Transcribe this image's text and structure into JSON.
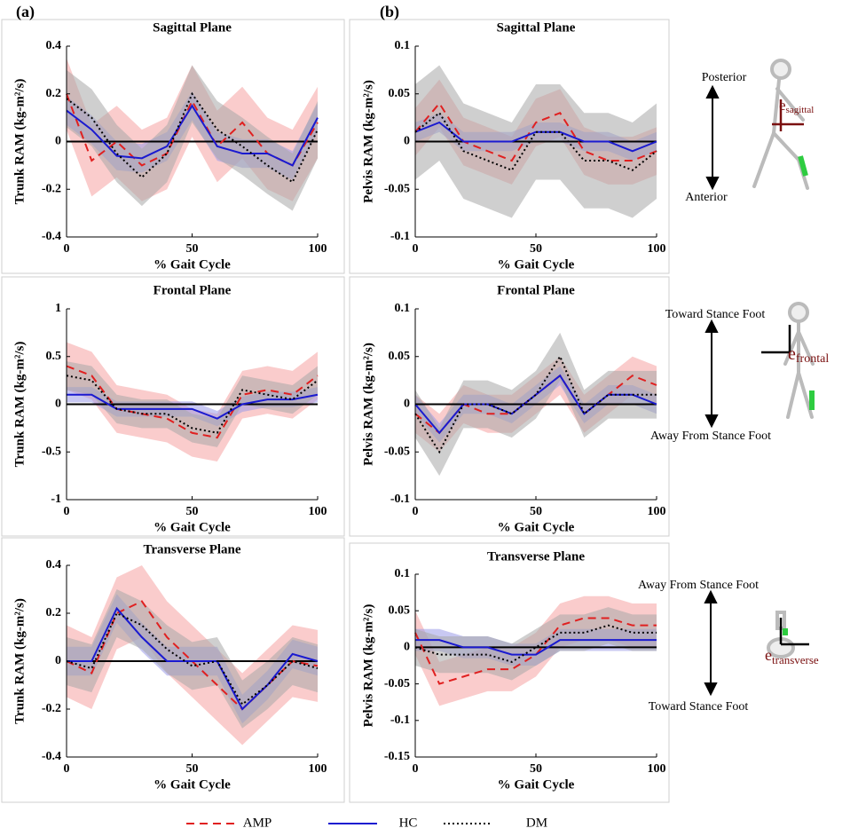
{
  "panel_labels": [
    "(a)",
    "(b)"
  ],
  "annotations": [
    {
      "top": "Posterior",
      "bottom": "Anterior",
      "vector": "e",
      "subscript": "sagittal"
    },
    {
      "top": "Toward Stance Foot",
      "bottom": "Away From Stance Foot",
      "vector": "e",
      "subscript": "frontal"
    },
    {
      "top": "Away From Stance Foot",
      "bottom": "Toward Stance Foot",
      "vector": "e",
      "subscript": "transverse"
    }
  ],
  "chart_data": [
    {
      "type": "line",
      "title": "Sagittal Plane",
      "xlabel": "% Gait Cycle",
      "ylabel": "Trunk RAM (kg-m²/s)",
      "x": [
        0,
        10,
        20,
        30,
        40,
        50,
        60,
        70,
        80,
        90,
        100
      ],
      "xlim": [
        0,
        100
      ],
      "xticks": [
        0,
        50,
        100
      ],
      "ylim": [
        -0.4,
        0.4
      ],
      "yticks": [
        -0.4,
        -0.2,
        0,
        0.2,
        0.4
      ],
      "zero_line": true,
      "series": [
        {
          "name": "AMP",
          "color": "#e02020",
          "band_color": "#f5a3a3",
          "linestyle": "dashed",
          "values": [
            0.2,
            -0.08,
            0,
            -0.1,
            -0.05,
            0.17,
            -0.02,
            0.08,
            -0.05,
            -0.1,
            0.08
          ],
          "lower": [
            0.05,
            -0.23,
            -0.15,
            -0.25,
            -0.2,
            0.02,
            -0.17,
            -0.07,
            -0.2,
            -0.25,
            -0.07
          ],
          "upper": [
            0.35,
            0.07,
            0.15,
            0.05,
            0.1,
            0.32,
            0.13,
            0.23,
            0.1,
            0.05,
            0.23
          ]
        },
        {
          "name": "HC",
          "color": "#1a1ad0",
          "band_color": "#9a9ae8",
          "linestyle": "solid",
          "values": [
            0.13,
            0.05,
            -0.06,
            -0.07,
            -0.02,
            0.15,
            -0.02,
            -0.05,
            -0.05,
            -0.1,
            0.1
          ],
          "lower": [
            0.07,
            -0.01,
            -0.12,
            -0.13,
            -0.08,
            0.09,
            -0.08,
            -0.11,
            -0.11,
            -0.16,
            0.04
          ],
          "upper": [
            0.19,
            0.11,
            0,
            -0.01,
            0.04,
            0.21,
            0.04,
            0.01,
            0.01,
            -0.04,
            0.16
          ]
        },
        {
          "name": "DM",
          "color": "#000000",
          "band_color": "#a8a8a8",
          "linestyle": "dotted",
          "values": [
            0.18,
            0.1,
            -0.05,
            -0.15,
            -0.05,
            0.2,
            0.05,
            -0.02,
            -0.1,
            -0.17,
            0.05
          ],
          "lower": [
            0.06,
            -0.02,
            -0.17,
            -0.27,
            -0.17,
            0.08,
            -0.07,
            -0.14,
            -0.22,
            -0.29,
            -0.07
          ],
          "upper": [
            0.3,
            0.22,
            0.07,
            -0.03,
            0.07,
            0.32,
            0.17,
            0.1,
            0.02,
            -0.05,
            0.17
          ]
        }
      ]
    },
    {
      "type": "line",
      "title": "Sagittal Plane",
      "xlabel": "% Gait Cycle",
      "ylabel": "Pelvis RAM (kg-m²/s)",
      "x": [
        0,
        10,
        20,
        30,
        40,
        50,
        60,
        70,
        80,
        90,
        100
      ],
      "xlim": [
        0,
        100
      ],
      "xticks": [
        0,
        50,
        100
      ],
      "ylim": [
        -0.1,
        0.1
      ],
      "yticks": [
        -0.1,
        -0.05,
        0,
        0.05,
        0.1
      ],
      "zero_line": true,
      "series": [
        {
          "name": "AMP",
          "color": "#e02020",
          "band_color": "#f5a3a3",
          "linestyle": "dashed",
          "values": [
            0.01,
            0.04,
            0,
            -0.01,
            -0.02,
            0.02,
            0.03,
            -0.01,
            -0.02,
            -0.02,
            -0.01
          ],
          "lower": [
            -0.015,
            0.015,
            -0.025,
            -0.035,
            -0.045,
            -0.005,
            0.005,
            -0.035,
            -0.045,
            -0.045,
            -0.035
          ],
          "upper": [
            0.035,
            0.065,
            0.025,
            0.015,
            0.005,
            0.045,
            0.055,
            0.015,
            0.005,
            0.005,
            0.015
          ]
        },
        {
          "name": "HC",
          "color": "#1a1ad0",
          "band_color": "#9a9ae8",
          "linestyle": "solid",
          "values": [
            0.01,
            0.02,
            0,
            0,
            0,
            0.01,
            0.01,
            0,
            0,
            -0.01,
            0
          ],
          "lower": [
            0,
            0.01,
            -0.01,
            -0.01,
            -0.01,
            0,
            0,
            -0.01,
            -0.01,
            -0.02,
            -0.01
          ],
          "upper": [
            0.02,
            0.03,
            0.01,
            0.01,
            0.01,
            0.02,
            0.02,
            0.01,
            0.01,
            0,
            0.01
          ]
        },
        {
          "name": "DM",
          "color": "#000000",
          "band_color": "#a8a8a8",
          "linestyle": "dotted",
          "values": [
            0.01,
            0.03,
            -0.01,
            -0.02,
            -0.03,
            0.01,
            0.01,
            -0.02,
            -0.02,
            -0.03,
            -0.01
          ],
          "lower": [
            -0.04,
            -0.02,
            -0.06,
            -0.07,
            -0.08,
            -0.04,
            -0.04,
            -0.07,
            -0.07,
            -0.08,
            -0.06
          ],
          "upper": [
            0.06,
            0.08,
            0.04,
            0.03,
            0.02,
            0.06,
            0.06,
            0.03,
            0.03,
            0.02,
            0.04
          ]
        }
      ]
    },
    {
      "type": "line",
      "title": "Frontal Plane",
      "xlabel": "% Gait Cycle",
      "ylabel": "Trunk RAM (kg-m²/s)",
      "x": [
        0,
        10,
        20,
        30,
        40,
        50,
        60,
        70,
        80,
        90,
        100
      ],
      "xlim": [
        0,
        100
      ],
      "xticks": [
        0,
        50,
        100
      ],
      "ylim": [
        -1,
        1
      ],
      "yticks": [
        -1,
        -0.5,
        0,
        0.5,
        1
      ],
      "zero_line": true,
      "series": [
        {
          "name": "AMP",
          "color": "#e02020",
          "band_color": "#f5a3a3",
          "linestyle": "dashed",
          "values": [
            0.4,
            0.3,
            -0.05,
            -0.1,
            -0.15,
            -0.3,
            -0.35,
            0.1,
            0.15,
            0.1,
            0.3
          ],
          "lower": [
            0.15,
            0.05,
            -0.3,
            -0.35,
            -0.4,
            -0.55,
            -0.6,
            -0.15,
            -0.1,
            -0.15,
            0.05
          ],
          "upper": [
            0.65,
            0.55,
            0.2,
            0.15,
            0.1,
            -0.05,
            -0.1,
            0.35,
            0.4,
            0.35,
            0.55
          ]
        },
        {
          "name": "HC",
          "color": "#1a1ad0",
          "band_color": "#9a9ae8",
          "linestyle": "solid",
          "values": [
            0.1,
            0.1,
            -0.05,
            -0.05,
            -0.05,
            -0.05,
            -0.15,
            0,
            0.05,
            0.05,
            0.1
          ],
          "lower": [
            0.02,
            0.02,
            -0.13,
            -0.13,
            -0.13,
            -0.13,
            -0.23,
            -0.08,
            -0.03,
            -0.03,
            0.02
          ],
          "upper": [
            0.18,
            0.18,
            0.03,
            0.03,
            0.03,
            0.03,
            -0.07,
            0.08,
            0.13,
            0.13,
            0.18
          ]
        },
        {
          "name": "DM",
          "color": "#000000",
          "band_color": "#a8a8a8",
          "linestyle": "dotted",
          "values": [
            0.3,
            0.25,
            -0.05,
            -0.1,
            -0.1,
            -0.25,
            -0.3,
            0.15,
            0.1,
            0.05,
            0.25
          ],
          "lower": [
            0.15,
            0.1,
            -0.2,
            -0.25,
            -0.25,
            -0.4,
            -0.45,
            0,
            -0.05,
            -0.1,
            0.1
          ],
          "upper": [
            0.45,
            0.4,
            0.1,
            0.05,
            0.05,
            -0.1,
            -0.15,
            0.3,
            0.25,
            0.2,
            0.4
          ]
        }
      ]
    },
    {
      "type": "line",
      "title": "Frontal Plane",
      "xlabel": "% Gait Cycle",
      "ylabel": "Pelvis RAM (kg-m²/s)",
      "x": [
        0,
        10,
        20,
        30,
        40,
        50,
        60,
        70,
        80,
        90,
        100
      ],
      "xlim": [
        0,
        100
      ],
      "xticks": [
        0,
        50,
        100
      ],
      "ylim": [
        -0.1,
        0.1
      ],
      "yticks": [
        -0.1,
        -0.05,
        0,
        0.05,
        0.1
      ],
      "zero_line": true,
      "series": [
        {
          "name": "AMP",
          "color": "#e02020",
          "band_color": "#f5a3a3",
          "linestyle": "dashed",
          "values": [
            -0.01,
            -0.03,
            0,
            -0.01,
            -0.01,
            0.01,
            0.03,
            -0.01,
            0.01,
            0.03,
            0.02
          ],
          "lower": [
            -0.03,
            -0.05,
            -0.02,
            -0.03,
            -0.03,
            -0.01,
            0.01,
            -0.03,
            -0.01,
            0.01,
            0
          ],
          "upper": [
            0.01,
            -0.01,
            0.02,
            0.01,
            0.01,
            0.03,
            0.05,
            0.01,
            0.03,
            0.05,
            0.04
          ]
        },
        {
          "name": "HC",
          "color": "#1a1ad0",
          "band_color": "#9a9ae8",
          "linestyle": "solid",
          "values": [
            0,
            -0.03,
            0,
            0,
            -0.01,
            0.01,
            0.03,
            -0.01,
            0.01,
            0.01,
            0
          ],
          "lower": [
            -0.01,
            -0.04,
            -0.01,
            -0.01,
            -0.02,
            0,
            0.02,
            -0.02,
            0,
            0,
            -0.01
          ],
          "upper": [
            0.01,
            -0.02,
            0.01,
            0.01,
            0,
            0.02,
            0.04,
            0,
            0.02,
            0.02,
            0.01
          ]
        },
        {
          "name": "DM",
          "color": "#000000",
          "band_color": "#a8a8a8",
          "linestyle": "dotted",
          "values": [
            -0.01,
            -0.05,
            0,
            0,
            -0.01,
            0.01,
            0.05,
            -0.01,
            0.01,
            0.01,
            0.01
          ],
          "lower": [
            -0.035,
            -0.075,
            -0.025,
            -0.025,
            -0.035,
            -0.015,
            0.025,
            -0.035,
            -0.015,
            -0.015,
            -0.015
          ],
          "upper": [
            0.015,
            -0.025,
            0.025,
            0.025,
            0.015,
            0.035,
            0.075,
            0.015,
            0.035,
            0.035,
            0.035
          ]
        }
      ]
    },
    {
      "type": "line",
      "title": "Transverse Plane",
      "xlabel": "% Gait Cycle",
      "ylabel": "Trunk RAM (kg-m²/s)",
      "x": [
        0,
        10,
        20,
        30,
        40,
        50,
        60,
        70,
        80,
        90,
        100
      ],
      "xlim": [
        0,
        100
      ],
      "xticks": [
        0,
        50,
        100
      ],
      "ylim": [
        -0.4,
        0.4
      ],
      "yticks": [
        -0.4,
        -0.2,
        0,
        0.2,
        0.4
      ],
      "zero_line": true,
      "series": [
        {
          "name": "AMP",
          "color": "#e02020",
          "band_color": "#f5a3a3",
          "linestyle": "dashed",
          "values": [
            0,
            -0.05,
            0.2,
            0.25,
            0.1,
            0,
            -0.1,
            -0.2,
            -0.1,
            0,
            -0.02
          ],
          "lower": [
            -0.15,
            -0.2,
            0.05,
            0.1,
            -0.05,
            -0.15,
            -0.25,
            -0.35,
            -0.25,
            -0.15,
            -0.17
          ],
          "upper": [
            0.15,
            0.1,
            0.35,
            0.4,
            0.25,
            0.15,
            0.05,
            -0.05,
            0.05,
            0.15,
            0.13
          ]
        },
        {
          "name": "HC",
          "color": "#1a1ad0",
          "band_color": "#9a9ae8",
          "linestyle": "solid",
          "values": [
            0,
            0,
            0.22,
            0.1,
            0,
            0,
            0,
            -0.2,
            -0.1,
            0.03,
            0
          ],
          "lower": [
            -0.06,
            -0.06,
            0.16,
            0.04,
            -0.06,
            -0.06,
            -0.06,
            -0.26,
            -0.16,
            -0.03,
            -0.06
          ],
          "upper": [
            0.06,
            0.06,
            0.28,
            0.16,
            0.06,
            0.06,
            0.06,
            -0.14,
            -0.04,
            0.09,
            0.06
          ]
        },
        {
          "name": "DM",
          "color": "#000000",
          "band_color": "#a8a8a8",
          "linestyle": "dotted",
          "values": [
            0,
            -0.03,
            0.2,
            0.15,
            0.05,
            -0.02,
            0,
            -0.18,
            -0.1,
            0,
            -0.03
          ],
          "lower": [
            -0.1,
            -0.13,
            0.1,
            0.05,
            -0.05,
            -0.12,
            -0.1,
            -0.28,
            -0.2,
            -0.1,
            -0.13
          ],
          "upper": [
            0.1,
            0.07,
            0.3,
            0.25,
            0.15,
            0.08,
            0.1,
            -0.08,
            0,
            0.1,
            0.07
          ]
        }
      ]
    },
    {
      "type": "line",
      "title": "Transverse Plane",
      "xlabel": "% Gait Cycle",
      "ylabel": "Pelvis RAM (kg-m²/s)",
      "x": [
        0,
        10,
        20,
        30,
        40,
        50,
        60,
        70,
        80,
        90,
        100
      ],
      "xlim": [
        0,
        100
      ],
      "xticks": [
        0,
        50,
        100
      ],
      "ylim": [
        -0.15,
        0.1
      ],
      "yticks": [
        -0.15,
        -0.1,
        -0.05,
        0,
        0.05,
        0.1
      ],
      "zero_line": true,
      "series": [
        {
          "name": "AMP",
          "color": "#e02020",
          "band_color": "#f5a3a3",
          "linestyle": "dashed",
          "values": [
            0.02,
            -0.05,
            -0.04,
            -0.03,
            -0.03,
            -0.01,
            0.03,
            0.04,
            0.04,
            0.03,
            0.03
          ],
          "lower": [
            -0.01,
            -0.08,
            -0.07,
            -0.06,
            -0.06,
            -0.04,
            0,
            0.01,
            0.01,
            0,
            0
          ],
          "upper": [
            0.05,
            -0.02,
            -0.01,
            0,
            0,
            0.02,
            0.06,
            0.07,
            0.07,
            0.06,
            0.06
          ]
        },
        {
          "name": "HC",
          "color": "#1a1ad0",
          "band_color": "#9a9ae8",
          "linestyle": "solid",
          "values": [
            0.01,
            0.01,
            0,
            0,
            -0.01,
            -0.01,
            0.01,
            0.01,
            0.01,
            0.01,
            0.01
          ],
          "lower": [
            -0.005,
            -0.005,
            -0.015,
            -0.015,
            -0.025,
            -0.025,
            -0.005,
            -0.005,
            -0.005,
            -0.005,
            -0.005
          ],
          "upper": [
            0.025,
            0.025,
            0.015,
            0.015,
            0.005,
            0.005,
            0.025,
            0.025,
            0.025,
            0.025,
            0.025
          ]
        },
        {
          "name": "DM",
          "color": "#000000",
          "band_color": "#a8a8a8",
          "linestyle": "dotted",
          "values": [
            0,
            -0.01,
            -0.01,
            -0.01,
            -0.02,
            0,
            0.02,
            0.02,
            0.03,
            0.02,
            0.02
          ],
          "lower": [
            -0.025,
            -0.035,
            -0.035,
            -0.035,
            -0.045,
            -0.025,
            -0.005,
            -0.005,
            0.005,
            -0.005,
            -0.005
          ],
          "upper": [
            0.025,
            0.015,
            0.015,
            0.015,
            0.005,
            0.025,
            0.045,
            0.045,
            0.055,
            0.045,
            0.045
          ]
        }
      ]
    }
  ]
}
